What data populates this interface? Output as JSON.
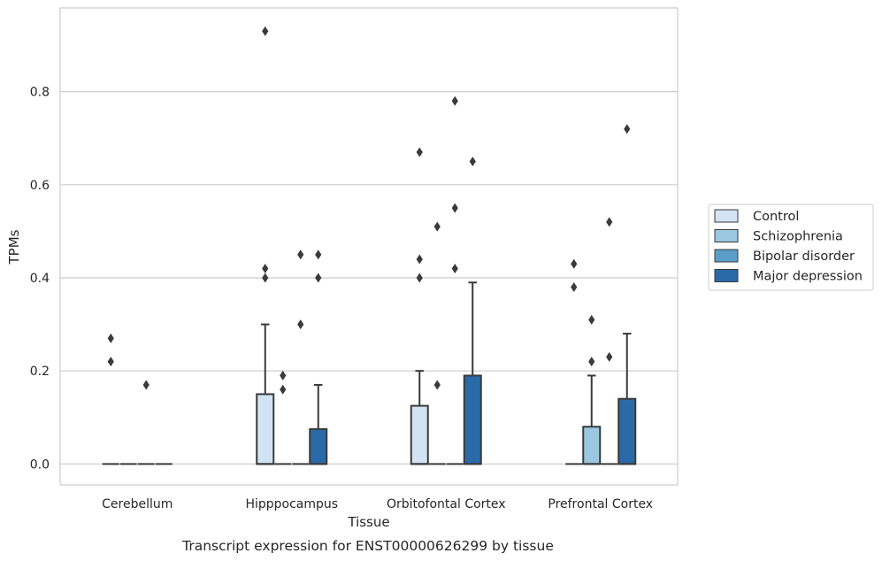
{
  "chart_data": {
    "type": "box",
    "caption": "Transcript expression for ENST00000626299 by tissue",
    "xlabel": "Tissue",
    "ylabel": "TPMs",
    "ylim": [
      -0.045,
      0.98
    ],
    "yticks": [
      "0.0",
      "0.2",
      "0.4",
      "0.6",
      "0.8"
    ],
    "grid": true,
    "legend_position": "right",
    "categories": [
      "Cerebellum",
      "Hipppocampus",
      "Orbitofontal Cortex",
      "Prefrontal Cortex"
    ],
    "series": [
      {
        "name": "Control",
        "color": "#d2e3f3",
        "boxes": [
          {
            "q1": 0,
            "median": 0,
            "q3": 0,
            "whisker_low": 0,
            "whisker_high": 0,
            "outliers": [
              0.27,
              0.22
            ]
          },
          {
            "q1": 0,
            "median": 0,
            "q3": 0.15,
            "whisker_low": 0,
            "whisker_high": 0.3,
            "outliers": [
              0.93,
              0.42,
              0.4
            ]
          },
          {
            "q1": 0,
            "median": 0,
            "q3": 0.125,
            "whisker_low": 0,
            "whisker_high": 0.2,
            "outliers": [
              0.67,
              0.44,
              0.4
            ]
          },
          {
            "q1": 0,
            "median": 0,
            "q3": 0,
            "whisker_low": 0,
            "whisker_high": 0,
            "outliers": [
              0.43,
              0.38
            ]
          }
        ]
      },
      {
        "name": "Schizophrenia",
        "color": "#9ac8e0",
        "boxes": [
          {
            "q1": 0,
            "median": 0,
            "q3": 0,
            "whisker_low": 0,
            "whisker_high": 0,
            "outliers": []
          },
          {
            "q1": 0,
            "median": 0,
            "q3": 0,
            "whisker_low": 0,
            "whisker_high": 0,
            "outliers": [
              0.19,
              0.16
            ]
          },
          {
            "q1": 0,
            "median": 0,
            "q3": 0,
            "whisker_low": 0,
            "whisker_high": 0,
            "outliers": [
              0.51,
              0.17
            ]
          },
          {
            "q1": 0,
            "median": 0,
            "q3": 0.08,
            "whisker_low": 0,
            "whisker_high": 0.19,
            "outliers": [
              0.31,
              0.22
            ]
          }
        ]
      },
      {
        "name": "Bipolar disorder",
        "color": "#5a9ec9",
        "boxes": [
          {
            "q1": 0,
            "median": 0,
            "q3": 0,
            "whisker_low": 0,
            "whisker_high": 0,
            "outliers": [
              0.17
            ]
          },
          {
            "q1": 0,
            "median": 0,
            "q3": 0,
            "whisker_low": 0,
            "whisker_high": 0,
            "outliers": [
              0.45,
              0.3
            ]
          },
          {
            "q1": 0,
            "median": 0,
            "q3": 0,
            "whisker_low": 0,
            "whisker_high": 0,
            "outliers": [
              0.78,
              0.55,
              0.42
            ]
          },
          {
            "q1": 0,
            "median": 0,
            "q3": 0,
            "whisker_low": 0,
            "whisker_high": 0,
            "outliers": [
              0.52,
              0.23
            ]
          }
        ]
      },
      {
        "name": "Major depression",
        "color": "#2a6aa8",
        "boxes": [
          {
            "q1": 0,
            "median": 0,
            "q3": 0,
            "whisker_low": 0,
            "whisker_high": 0,
            "outliers": []
          },
          {
            "q1": 0,
            "median": 0,
            "q3": 0.075,
            "whisker_low": 0,
            "whisker_high": 0.17,
            "outliers": [
              0.45,
              0.4
            ]
          },
          {
            "q1": 0,
            "median": 0,
            "q3": 0.19,
            "whisker_low": 0,
            "whisker_high": 0.39,
            "outliers": [
              0.65
            ]
          },
          {
            "q1": 0,
            "median": 0,
            "q3": 0.14,
            "whisker_low": 0,
            "whisker_high": 0.28,
            "outliers": [
              0.72
            ]
          }
        ]
      }
    ]
  }
}
